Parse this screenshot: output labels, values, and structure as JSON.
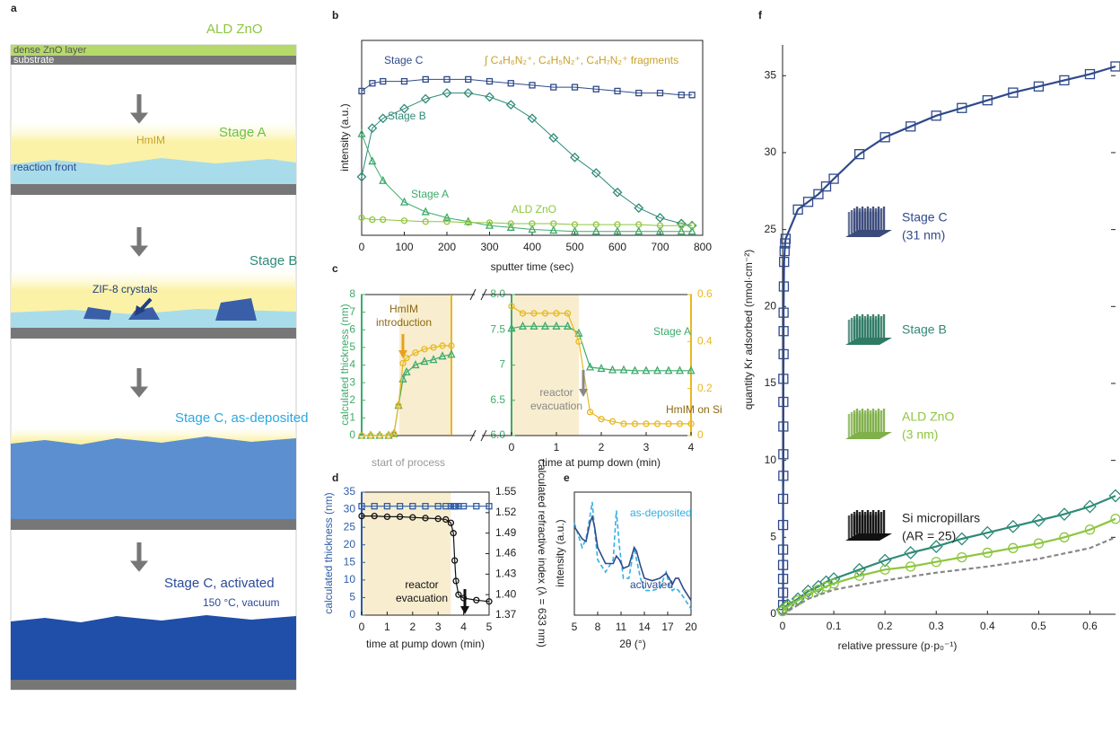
{
  "diagram": {
    "panel": "a",
    "title": "ALD ZnO",
    "layer_top": "dense ZnO layer",
    "substrate": "substrate",
    "hmim": "HmIM",
    "stage_a": "Stage A",
    "reaction_front": "reaction front",
    "stage_b": "Stage B",
    "crystals": "ZIF-8 crystals",
    "stage_c_deposited": "Stage C, as-deposited",
    "stage_c_activated": "Stage C, activated",
    "activation": "150 °C, vacuum"
  },
  "chart_data": [
    {
      "type": "line",
      "panel": "b",
      "xlabel": "sputter time (sec)",
      "ylabel": "intensity (a.u.)",
      "annotations": [
        "∫ C₄H₆N₂⁺, C₄H₅N₂⁺, C₄H₇N₂⁺ fragments"
      ],
      "x": [
        0,
        25,
        50,
        100,
        150,
        200,
        250,
        300,
        350,
        400,
        450,
        500,
        550,
        600,
        650,
        700,
        750,
        775
      ],
      "xlim": [
        0,
        800
      ],
      "ylim": [
        0,
        1
      ],
      "xticks": [
        0,
        100,
        200,
        300,
        400,
        500,
        600,
        700,
        800
      ],
      "series": [
        {
          "name": "Stage C",
          "color": "#2f4a8c",
          "marker": "square",
          "values": [
            0.74,
            0.78,
            0.79,
            0.79,
            0.8,
            0.8,
            0.8,
            0.79,
            0.78,
            0.77,
            0.76,
            0.76,
            0.75,
            0.74,
            0.73,
            0.73,
            0.72,
            0.72
          ]
        },
        {
          "name": "Stage B",
          "color": "#2f8a78",
          "marker": "diamond",
          "values": [
            0.3,
            0.55,
            0.6,
            0.65,
            0.7,
            0.73,
            0.73,
            0.71,
            0.67,
            0.6,
            0.5,
            0.4,
            0.32,
            0.22,
            0.14,
            0.09,
            0.06,
            0.05
          ]
        },
        {
          "name": "Stage A",
          "color": "#3dab6b",
          "marker": "triangle",
          "values": [
            0.52,
            0.38,
            0.28,
            0.17,
            0.12,
            0.09,
            0.07,
            0.05,
            0.04,
            0.03,
            0.025,
            0.02,
            0.02,
            0.02,
            0.02,
            0.02,
            0.02,
            0.02
          ]
        },
        {
          "name": "ALD ZnO",
          "color": "#8dc63f",
          "marker": "circle",
          "values": [
            0.09,
            0.08,
            0.08,
            0.075,
            0.07,
            0.07,
            0.065,
            0.065,
            0.06,
            0.06,
            0.06,
            0.055,
            0.055,
            0.055,
            0.055,
            0.05,
            0.05,
            0.05
          ]
        }
      ]
    },
    {
      "type": "line",
      "panel": "c",
      "ylabel": "calculated thickness (nm)",
      "annotations": [
        [
          "HmIM",
          "introduction"
        ],
        "start of process"
      ],
      "x": [
        0,
        1,
        2,
        3,
        3.6,
        4.1,
        4.6,
        5,
        6,
        7,
        8,
        9,
        10
      ],
      "xlim": [
        0,
        10
      ],
      "ylim": [
        0,
        8
      ],
      "yticks": [
        0,
        1,
        2,
        3,
        4,
        5,
        6,
        7,
        8
      ],
      "y_color": "#3dab6b",
      "y2_color": "#e8b820",
      "highlight_span": [
        4.2,
        10
      ],
      "series": [
        {
          "color": "#3dab6b",
          "marker": "triangle",
          "values": [
            0,
            0,
            0,
            0,
            0.1,
            1.7,
            3.2,
            3.6,
            4.0,
            4.2,
            4.3,
            4.5,
            4.6
          ]
        },
        {
          "color": "#e8b820",
          "marker": "circle",
          "values": [
            0,
            0,
            0,
            0,
            0.1,
            1.7,
            4.1,
            4.4,
            4.7,
            4.9,
            5.0,
            5.1,
            5.1
          ]
        }
      ]
    },
    {
      "type": "line",
      "xlabel": "time at pump down (min)",
      "annotations": [
        [
          "reactor",
          "evacuation"
        ]
      ],
      "x": [
        0,
        0.25,
        0.5,
        0.75,
        1,
        1.25,
        1.5,
        1.75,
        2,
        2.25,
        2.5,
        2.75,
        3,
        3.25,
        3.5,
        3.75,
        4
      ],
      "xlim": [
        0,
        4
      ],
      "xticks": [
        0,
        1,
        2,
        3,
        4
      ],
      "ylim": [
        6,
        8
      ],
      "yticks": [
        {
          "value": 6,
          "label": "6.0"
        },
        6.5,
        7,
        7.5,
        {
          "value": 8,
          "label": "8.0"
        }
      ],
      "y2lim": [
        0,
        0.6
      ],
      "y2ticks": [
        0,
        0.2,
        0.4,
        0.6
      ],
      "y_color": "#3dab6b",
      "y2_color": "#e8b820",
      "highlight_span": [
        0,
        1.5
      ],
      "series": [
        {
          "name": "Stage A",
          "color": "#3dab6b",
          "marker": "triangle",
          "values": [
            7.52,
            7.55,
            7.55,
            7.55,
            7.55,
            7.55,
            7.45,
            6.97,
            6.95,
            6.93,
            6.93,
            6.92,
            6.92,
            6.92,
            6.92,
            6.92,
            6.92
          ]
        },
        {
          "name": "HmIM on Si",
          "color": "#e8b820",
          "marker": "circle",
          "axis": "y2",
          "values": [
            0.55,
            0.52,
            0.52,
            0.52,
            0.52,
            0.52,
            0.4,
            0.1,
            0.07,
            0.06,
            0.05,
            0.05,
            0.05,
            0.05,
            0.05,
            0.05,
            0.05
          ]
        }
      ]
    },
    {
      "type": "line",
      "panel": "d",
      "xlabel": "time at pump down (min)",
      "ylabel": "calculated thickness (nm)",
      "y2label": "calculated refractive index (λ = 633 nm)",
      "annotations": [
        [
          "reactor",
          "evacuation"
        ]
      ],
      "x": [
        0,
        0.5,
        1,
        1.5,
        2,
        2.5,
        3,
        3.3,
        3.5,
        3.6,
        3.65,
        3.7,
        3.8,
        4,
        4.5,
        5
      ],
      "xlim": [
        0,
        5
      ],
      "xticks": [
        0,
        1,
        2,
        3,
        4,
        5
      ],
      "ylim": [
        0,
        35
      ],
      "yticks": [
        0,
        5,
        10,
        15,
        20,
        25,
        30,
        35
      ],
      "y2lim": [
        1.37,
        1.55
      ],
      "y2ticks": [
        1.37,
        {
          "value": 1.4,
          "label": "1.40"
        },
        1.43,
        1.46,
        1.49,
        1.52,
        1.55
      ],
      "y_color": "#2f5da8",
      "highlight_span": [
        0,
        3.5
      ],
      "series": [
        {
          "color": "#2f5da8",
          "marker": "square",
          "values": [
            31,
            31,
            31,
            31,
            31,
            31,
            31,
            31,
            31,
            31,
            31,
            31,
            31,
            31,
            31,
            31
          ]
        },
        {
          "color": "#111111",
          "marker": "circle",
          "axis": "y2",
          "values": [
            1.515,
            1.515,
            1.514,
            1.514,
            1.513,
            1.512,
            1.511,
            1.51,
            1.505,
            1.49,
            1.45,
            1.42,
            1.4,
            1.395,
            1.392,
            1.39
          ]
        }
      ]
    },
    {
      "type": "line",
      "panel": "e",
      "xlabel": "2θ (°)",
      "ylabel": "intensity (a.u.)",
      "x": [
        5,
        6,
        6.5,
        7,
        7.3,
        7.6,
        8,
        9,
        10,
        10.4,
        10.8,
        11.3,
        12,
        12.7,
        13,
        13.5,
        14,
        15,
        16,
        16.8,
        17.2,
        17.6,
        18,
        18.4,
        19,
        20
      ],
      "xlim": [
        5,
        20
      ],
      "xticks": [
        5,
        8,
        11,
        14,
        17,
        20
      ],
      "ylim": [
        0,
        1
      ],
      "series": [
        {
          "name": "as-deposited",
          "color": "#33b0e0",
          "dash": true,
          "values": [
            0.75,
            0.55,
            0.62,
            0.8,
            0.92,
            0.7,
            0.45,
            0.35,
            0.45,
            0.85,
            0.55,
            0.3,
            0.3,
            0.55,
            0.45,
            0.3,
            0.2,
            0.2,
            0.22,
            0.35,
            0.25,
            0.2,
            0.22,
            0.2,
            0.15,
            0.05
          ]
        },
        {
          "name": "activated",
          "color": "#2f4a8c",
          "values": [
            0.72,
            0.62,
            0.6,
            0.75,
            0.8,
            0.72,
            0.55,
            0.42,
            0.42,
            0.48,
            0.45,
            0.38,
            0.4,
            0.55,
            0.52,
            0.4,
            0.3,
            0.28,
            0.3,
            0.34,
            0.3,
            0.25,
            0.3,
            0.3,
            0.22,
            0.12
          ]
        }
      ]
    },
    {
      "type": "line",
      "panel": "f",
      "xlabel": "relative pressure (p·p₀⁻¹)",
      "ylabel": "quantity Kr adsorbed (nmol·cm⁻²)",
      "xlim": [
        0,
        0.65
      ],
      "xticks": [
        0,
        0.1,
        0.2,
        0.3,
        0.4,
        0.5,
        0.6
      ],
      "ylim": [
        0,
        37
      ],
      "yticks": [
        0,
        5,
        10,
        15,
        20,
        25,
        30,
        35
      ],
      "series": [
        {
          "name": "Stage C",
          "detail": "(31 nm)",
          "color": "#2f4a8c",
          "marker": "square",
          "x": [
            0.001,
            0.001,
            0.001,
            0.001,
            0.001,
            0.001,
            0.001,
            0.0015,
            0.0015,
            0.0015,
            0.0015,
            0.0015,
            0.002,
            0.002,
            0.002,
            0.0025,
            0.003,
            0.004,
            0.005,
            0.006,
            0.03,
            0.05,
            0.07,
            0.085,
            0.1,
            0.15,
            0.2,
            0.25,
            0.3,
            0.35,
            0.4,
            0.45,
            0.5,
            0.55,
            0.6,
            0.65
          ],
          "values": [
            0.6,
            1.4,
            2.3,
            3.2,
            4.2,
            5.8,
            7.5,
            9.0,
            10.4,
            12.2,
            13.8,
            15.3,
            16.9,
            18.4,
            19.6,
            21.3,
            22.9,
            23.6,
            24.1,
            24.4,
            26.3,
            26.8,
            27.3,
            27.8,
            28.3,
            29.9,
            31.0,
            31.7,
            32.4,
            32.9,
            33.4,
            33.9,
            34.3,
            34.7,
            35.1,
            35.6
          ]
        },
        {
          "name": "Stage B",
          "color": "#2f8a78",
          "marker": "diamond",
          "x": [
            0,
            0.01,
            0.03,
            0.05,
            0.07,
            0.085,
            0.1,
            0.15,
            0.2,
            0.25,
            0.3,
            0.35,
            0.4,
            0.45,
            0.5,
            0.55,
            0.6,
            0.65
          ],
          "values": [
            0.3,
            0.6,
            1.0,
            1.5,
            1.8,
            2.1,
            2.3,
            2.9,
            3.5,
            4.0,
            4.4,
            4.9,
            5.3,
            5.7,
            6.1,
            6.5,
            7.0,
            7.7
          ]
        },
        {
          "name": "ALD ZnO",
          "detail": "(3 nm)",
          "color": "#8dc63f",
          "marker": "circle",
          "x": [
            0,
            0.01,
            0.03,
            0.05,
            0.07,
            0.085,
            0.1,
            0.15,
            0.2,
            0.25,
            0.3,
            0.35,
            0.4,
            0.45,
            0.5,
            0.55,
            0.6,
            0.65
          ],
          "values": [
            0.2,
            0.5,
            0.9,
            1.3,
            1.6,
            1.8,
            2.0,
            2.5,
            2.9,
            3.1,
            3.4,
            3.7,
            4.0,
            4.3,
            4.6,
            5.0,
            5.5,
            6.2
          ]
        },
        {
          "name": "Si micropillars",
          "detail": "(AR = 25)",
          "color": "#888888",
          "dash": true,
          "x": [
            0,
            0.05,
            0.1,
            0.2,
            0.3,
            0.4,
            0.5,
            0.6,
            0.65
          ],
          "values": [
            0,
            1.0,
            1.6,
            2.2,
            2.7,
            3.1,
            3.6,
            4.3,
            5.0
          ]
        }
      ]
    }
  ]
}
